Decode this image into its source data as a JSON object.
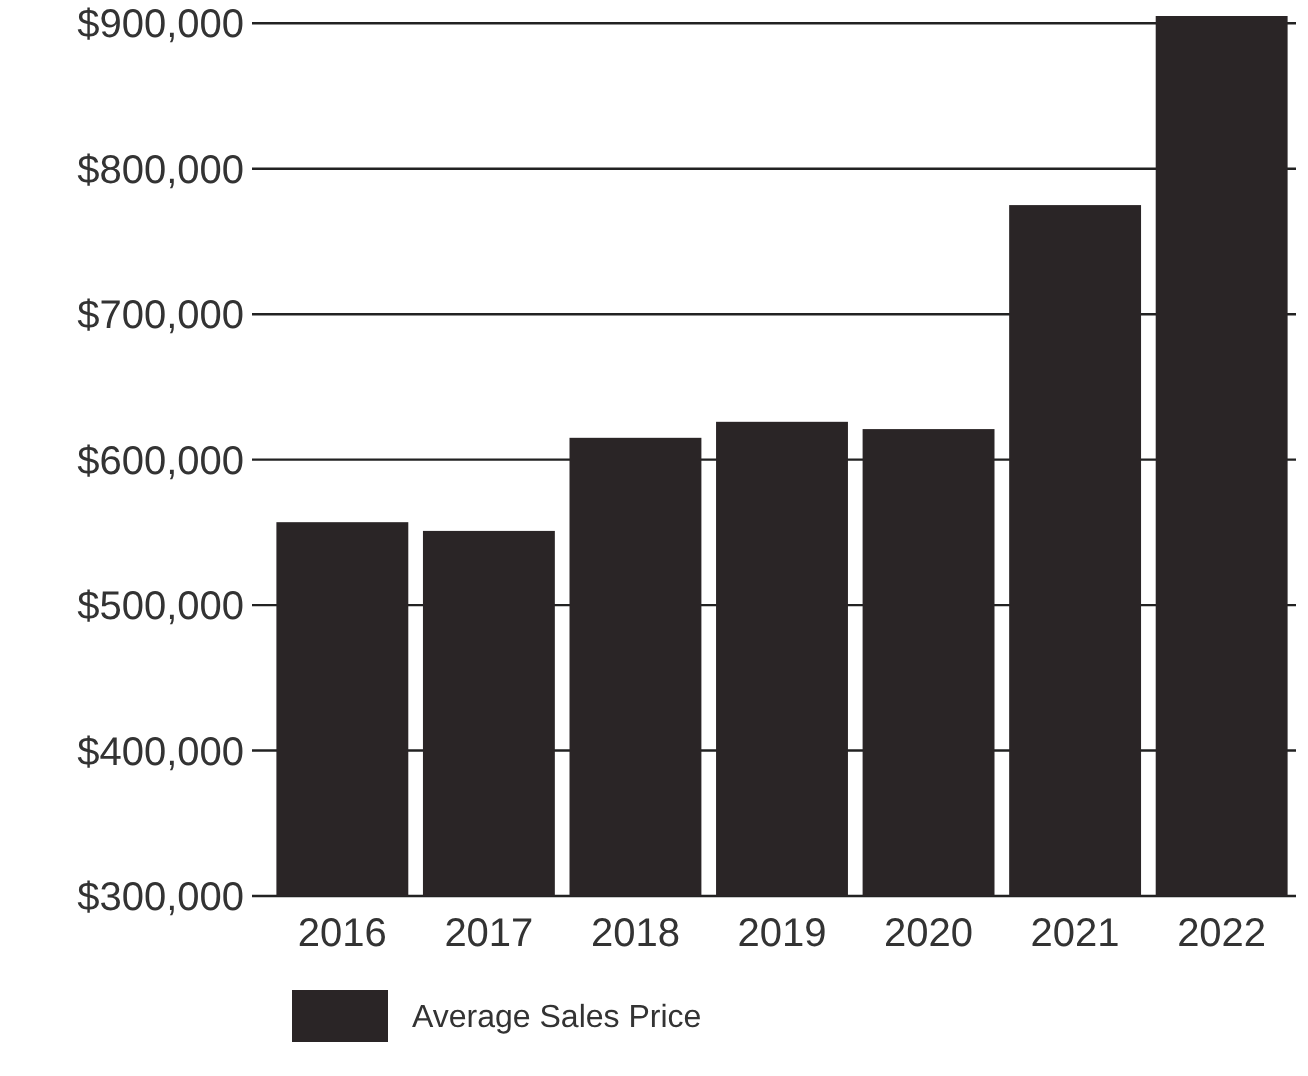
{
  "chart_data": {
    "type": "bar",
    "categories": [
      "2016",
      "2017",
      "2018",
      "2019",
      "2020",
      "2021",
      "2022"
    ],
    "series": [
      {
        "name": "Average Sales Price",
        "color": "#2a2526",
        "values": [
          557000,
          551000,
          615000,
          626000,
          621000,
          775000,
          905000
        ]
      }
    ],
    "ylim": [
      300000,
      905000
    ],
    "yticks": [
      {
        "value": 300000,
        "label": "$300,000"
      },
      {
        "value": 400000,
        "label": "$400,000"
      },
      {
        "value": 500000,
        "label": "$500,000"
      },
      {
        "value": 600000,
        "label": "$600,000"
      },
      {
        "value": 700000,
        "label": "$700,000"
      },
      {
        "value": 800000,
        "label": "$800,000"
      },
      {
        "value": 900000,
        "label": "$900,000"
      }
    ],
    "grid": "y",
    "legend": "bottom left"
  }
}
